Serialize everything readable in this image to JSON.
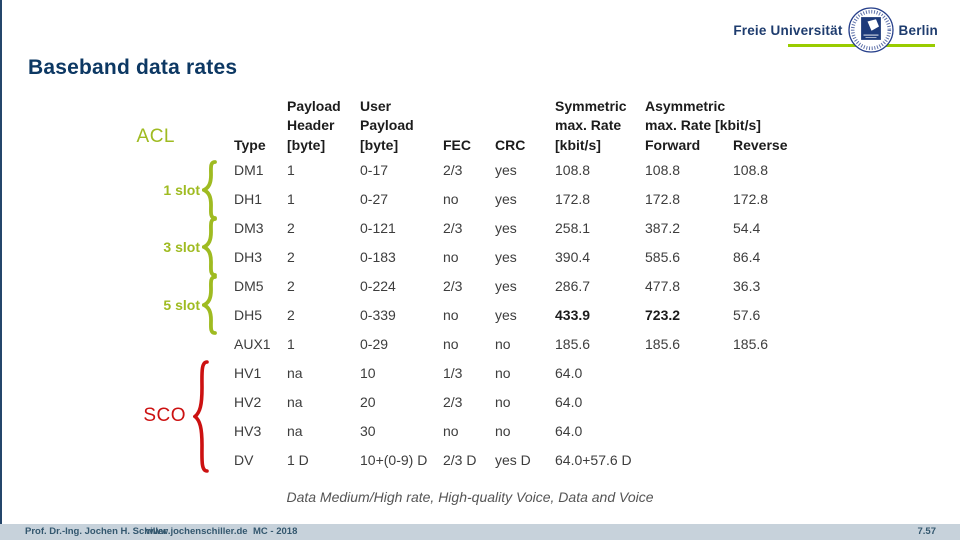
{
  "slide": {
    "title": "Baseband data rates",
    "caption": "Data Medium/High rate, High-quality Voice, Data and Voice"
  },
  "logo": {
    "left": "Freie Universität",
    "right": "Berlin",
    "seal_icon": "fu-berlin-seal"
  },
  "labels": {
    "acl": "ACL",
    "slot1": "1 slot",
    "slot3": "3 slot",
    "slot5": "5 slot",
    "sco": "SCO"
  },
  "colors": {
    "navy": "#0d3863",
    "green": "#9fbb21",
    "red": "#cc1111",
    "footer_bg": "#c7d2db"
  },
  "table": {
    "headers": [
      "Type",
      "Payload\nHeader\n[byte]",
      "User\nPayload\n[byte]",
      "FEC",
      "CRC",
      "Symmetric\nmax. Rate\n[kbit/s]",
      "Asymmetric\nmax. Rate [kbit/s]\nForward",
      "Reverse"
    ],
    "rows": [
      {
        "cells": [
          "DM1",
          "1",
          "0-17",
          "2/3",
          "yes",
          "108.8",
          "108.8",
          "108.8"
        ],
        "bold": []
      },
      {
        "cells": [
          "DH1",
          "1",
          "0-27",
          "no",
          "yes",
          "172.8",
          "172.8",
          "172.8"
        ],
        "bold": []
      },
      {
        "cells": [
          "DM3",
          "2",
          "0-121",
          "2/3",
          "yes",
          "258.1",
          "387.2",
          "54.4"
        ],
        "bold": []
      },
      {
        "cells": [
          "DH3",
          "2",
          "0-183",
          "no",
          "yes",
          "390.4",
          "585.6",
          "86.4"
        ],
        "bold": []
      },
      {
        "cells": [
          "DM5",
          "2",
          "0-224",
          "2/3",
          "yes",
          "286.7",
          "477.8",
          "36.3"
        ],
        "bold": []
      },
      {
        "cells": [
          "DH5",
          "2",
          "0-339",
          "no",
          "yes",
          "433.9",
          "723.2",
          "57.6"
        ],
        "bold": [
          5,
          6
        ]
      },
      {
        "cells": [
          "AUX1",
          "1",
          "0-29",
          "no",
          "no",
          "185.6",
          "185.6",
          "185.6"
        ],
        "bold": []
      },
      {
        "cells": [
          "HV1",
          "na",
          "10",
          "1/3",
          "no",
          "64.0",
          "",
          ""
        ],
        "bold": []
      },
      {
        "cells": [
          "HV2",
          "na",
          "20",
          "2/3",
          "no",
          "64.0",
          "",
          ""
        ],
        "bold": []
      },
      {
        "cells": [
          "HV3",
          "na",
          "30",
          "no",
          "no",
          "64.0",
          "",
          ""
        ],
        "bold": []
      },
      {
        "cells": [
          "DV",
          "1 D",
          "10+(0-9) D",
          "2/3 D",
          "yes D",
          "64.0+57.6 D",
          "",
          ""
        ],
        "bold": []
      }
    ]
  },
  "footer": {
    "author": "Prof. Dr.-Ing. Jochen H. Schiller",
    "website": "www.jochenschiller.de",
    "course": "MC - 2018",
    "page": "7.57"
  }
}
